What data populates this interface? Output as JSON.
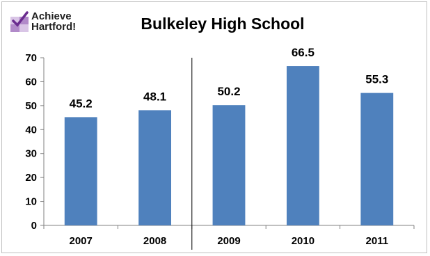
{
  "logo": {
    "line1": "Achieve",
    "line2": "Hartford!",
    "icon": "achieve-hartford-logo-mark"
  },
  "chart_data": {
    "type": "bar",
    "title": "Bulkeley High School",
    "xlabel": "",
    "ylabel": "",
    "categories": [
      "2007",
      "2008",
      "2009",
      "2010",
      "2011"
    ],
    "values": [
      45.2,
      48.1,
      50.2,
      66.5,
      55.3
    ],
    "value_labels": [
      "45.2",
      "48.1",
      "50.2",
      "66.5",
      "55.3"
    ],
    "ylim": [
      0,
      70
    ],
    "yticks": [
      "0",
      "10",
      "20",
      "30",
      "40",
      "50",
      "60",
      "70"
    ],
    "grid": false,
    "legend": "none",
    "separator_after_category": "2008",
    "bar_color": "#4f81bd"
  }
}
